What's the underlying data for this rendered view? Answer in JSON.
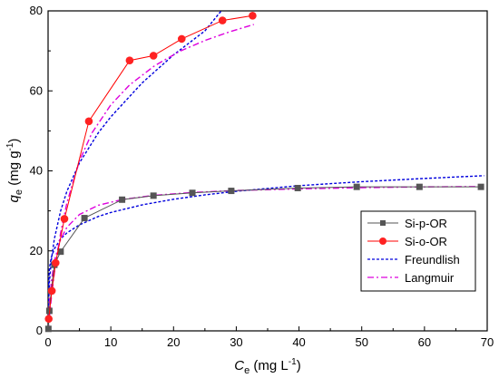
{
  "chart_data": {
    "type": "line",
    "xlabel": {
      "symbol": "C",
      "sub": "e",
      "unit_pre": " (mg L",
      "unit_sup": "-1",
      "unit_post": ")"
    },
    "ylabel": {
      "symbol": "q",
      "sub": "e",
      "unit_pre": " (mg g",
      "unit_sup": "-1",
      "unit_post": ")"
    },
    "xlim": [
      0,
      70
    ],
    "ylim": [
      0,
      80
    ],
    "xticks": [
      0,
      10,
      20,
      30,
      40,
      50,
      60,
      70
    ],
    "yticks": [
      0,
      20,
      40,
      60,
      80
    ],
    "grid": false,
    "legend_position": "center-right",
    "series": [
      {
        "name": "Si-p-OR",
        "kind": "data",
        "color": "#555555",
        "marker": "square",
        "x": [
          0.05,
          0.2,
          0.5,
          1.0,
          2.0,
          5.8,
          11.8,
          16.8,
          23.0,
          29.2,
          39.8,
          49.2,
          59.2,
          69.0
        ],
        "y": [
          0.5,
          5.0,
          10.0,
          16.5,
          19.8,
          28.2,
          32.8,
          33.8,
          34.5,
          35.0,
          35.7,
          36.0,
          36.0,
          36.0
        ]
      },
      {
        "name": "Si-o-OR",
        "kind": "data",
        "color": "#ff0000",
        "marker": "circle",
        "x": [
          0.1,
          0.6,
          1.2,
          2.6,
          6.5,
          13.0,
          16.8,
          21.3,
          27.8,
          32.6
        ],
        "y": [
          3.0,
          10.0,
          17.0,
          28.0,
          52.4,
          67.6,
          68.8,
          73.0,
          77.6,
          78.8
        ]
      },
      {
        "name": "Freundlish",
        "kind": "fit",
        "color": "#0000dd",
        "dash": "3,2",
        "curves": [
          {
            "x": [
              0.02,
              0.2,
              0.5,
              1,
              2,
              3,
              5,
              8,
              10,
              15,
              20,
              25,
              30,
              40,
              50,
              60,
              69.5
            ],
            "y": [
              9.3,
              15.5,
              18.3,
              20.5,
              23.0,
              24.5,
              26.5,
              28.6,
              29.6,
              31.5,
              32.9,
              34.0,
              34.9,
              36.3,
              37.3,
              38.1,
              38.8
            ]
          },
          {
            "x": [
              0.02,
              0.2,
              0.5,
              1,
              2,
              3,
              5,
              8,
              10,
              15,
              20,
              25,
              27.6
            ],
            "y": [
              4.0,
              12.0,
              17.5,
              23.0,
              30.0,
              34.9,
              42.0,
              49.5,
              53.5,
              62.0,
              69.0,
              75.0,
              80.0
            ]
          }
        ]
      },
      {
        "name": "Langmuir",
        "kind": "fit",
        "color": "#dd00dd",
        "dash": "7,3,2,3",
        "curves": [
          {
            "x": [
              0,
              0.2,
              0.5,
              1,
              2,
              3,
              5,
              8,
              12,
              17,
              23,
              30,
              40,
              50,
              60,
              69.5
            ],
            "y": [
              0,
              6.5,
              12.0,
              17.5,
              22.9,
              25.9,
              29.1,
              31.4,
              32.9,
              33.9,
              34.6,
              35.1,
              35.5,
              35.8,
              36.0,
              36.1
            ]
          },
          {
            "x": [
              0,
              0.5,
              1,
              2,
              3,
              5,
              7,
              10,
              13,
              17,
              21,
              25,
              29,
              32.8
            ],
            "y": [
              0,
              8.0,
              14.5,
              24.5,
              32.0,
              42.5,
              49.5,
              56.5,
              61.5,
              66.3,
              69.9,
              72.6,
              74.8,
              76.6
            ]
          }
        ]
      }
    ]
  }
}
